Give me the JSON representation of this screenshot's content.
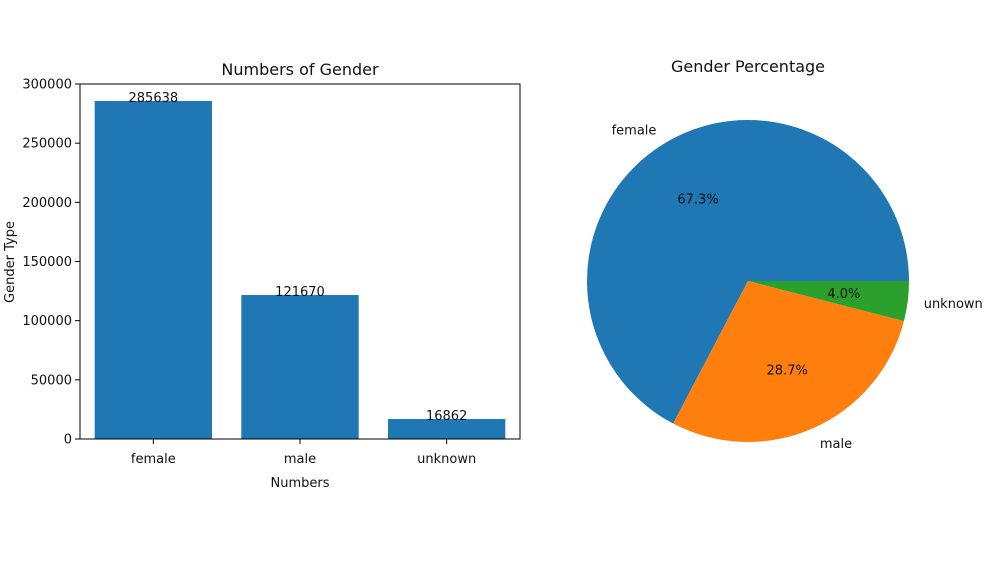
{
  "colors": {
    "female": "#1f77b4",
    "male": "#ff7f0e",
    "unknown": "#2ca02c",
    "axis": "#000000"
  },
  "chart_data": [
    {
      "type": "bar",
      "title": "Numbers of Gender",
      "xlabel": "Numbers",
      "ylabel": "Gender Type",
      "categories": [
        "female",
        "male",
        "unknown"
      ],
      "values": [
        285638,
        121670,
        16862
      ],
      "value_labels": [
        "285638",
        "121670",
        "16862"
      ],
      "ylim": [
        0,
        300000
      ],
      "yticks": [
        0,
        50000,
        100000,
        150000,
        200000,
        250000,
        300000
      ],
      "ytick_labels": [
        "0",
        "50000",
        "100000",
        "150000",
        "200000",
        "250000",
        "300000"
      ],
      "grid": false
    },
    {
      "type": "pie",
      "title": "Gender Percentage",
      "labels": [
        "female",
        "male",
        "unknown"
      ],
      "values": [
        67.3,
        28.7,
        4.0
      ],
      "pct_labels": [
        "67.3%",
        "28.7%",
        "4.0%"
      ]
    }
  ]
}
